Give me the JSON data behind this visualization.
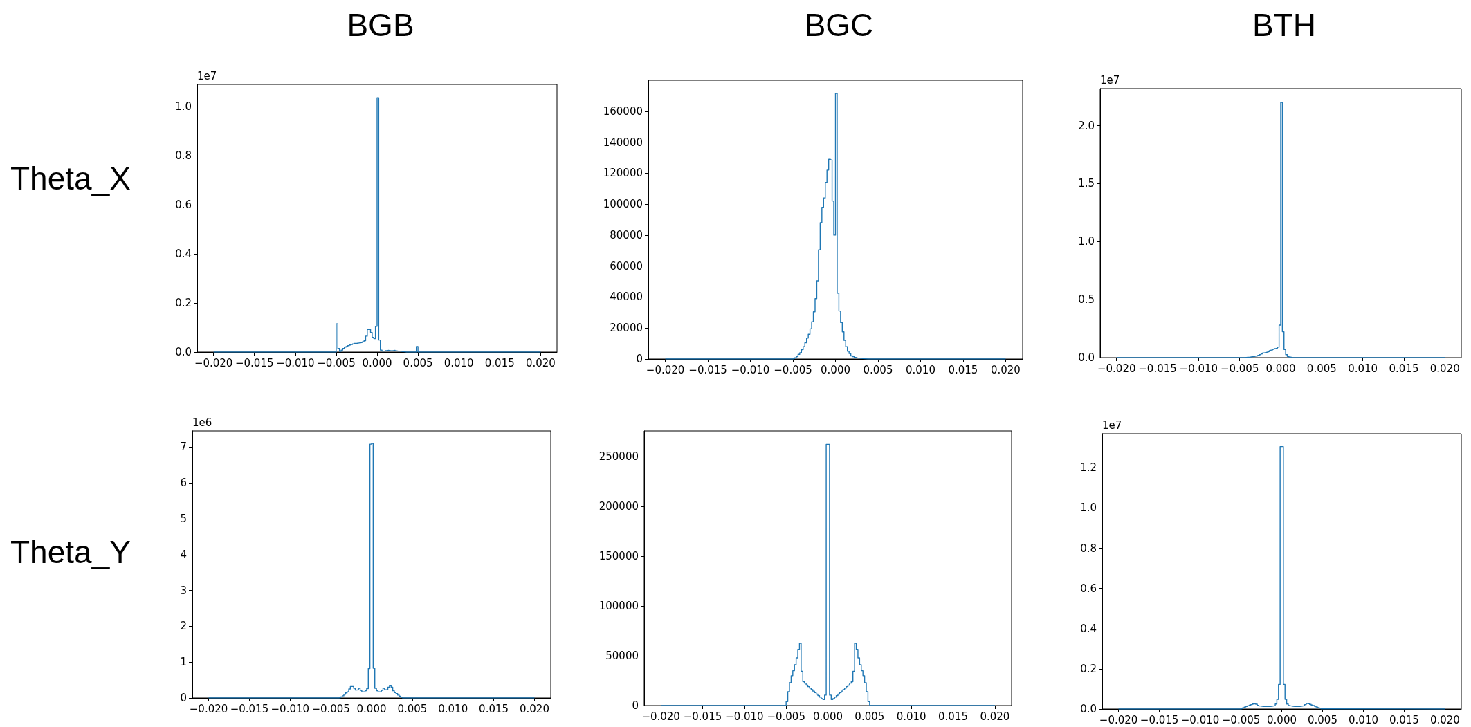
{
  "chart_data": [
    {
      "type": "histogram",
      "title": "BGB",
      "ylabel": "Theta_X",
      "annotations": [
        "1e7"
      ],
      "color": "#1f77b4",
      "bins": [
        -0.02,
        -0.005,
        -0.0048,
        -0.0046,
        -0.0044,
        -0.0042,
        -0.004,
        -0.0038,
        -0.0036,
        -0.0034,
        -0.0032,
        -0.003,
        -0.0028,
        -0.0026,
        -0.0024,
        -0.0022,
        -0.002,
        -0.0018,
        -0.0016,
        -0.0014,
        -0.0012,
        -0.001,
        -0.0008,
        -0.0006,
        -0.0004,
        -0.0002,
        0,
        0.0002,
        0.0004,
        0.0006,
        0.0008,
        0.001,
        0.0012,
        0.0014,
        0.0016,
        0.0018,
        0.002,
        0.0022,
        0.0024,
        0.0026,
        0.0028,
        0.003,
        0.0032,
        0.0034,
        0.0036,
        0.0038,
        0.004,
        0.0042,
        0.0044,
        0.0046,
        0.0048,
        0.005,
        0.02
      ],
      "values": [
        0,
        0.115,
        0.015,
        0.003,
        0.008,
        0.015,
        0.02,
        0.023,
        0.026,
        0.029,
        0.031,
        0.033,
        0.035,
        0.036,
        0.037,
        0.038,
        0.039,
        0.042,
        0.046,
        0.065,
        0.092,
        0.093,
        0.08,
        0.06,
        0.055,
        0.105,
        1.036,
        0.049,
        0.008,
        0.004,
        0.004,
        0.006,
        0.007,
        0.006,
        0.005,
        0.006,
        0.007,
        0.005,
        0.004,
        0.004,
        0.003,
        0.002,
        0.001,
        0,
        0,
        0,
        0,
        0,
        0,
        0,
        0.023,
        0
      ],
      "xlim": [
        -0.022,
        0.022
      ],
      "xticks": [
        {
          "value": -0.02,
          "label": "−0.020"
        },
        {
          "value": -0.015,
          "label": "−0.015"
        },
        {
          "value": -0.01,
          "label": "−0.010"
        },
        {
          "value": -0.005,
          "label": "−0.005"
        },
        {
          "value": 0,
          "label": "0.000"
        },
        {
          "value": 0.005,
          "label": "0.005"
        },
        {
          "value": 0.01,
          "label": "0.010"
        },
        {
          "value": 0.015,
          "label": "0.015"
        },
        {
          "value": 0.02,
          "label": "0.020"
        }
      ],
      "ylim": [
        0,
        1.09
      ],
      "yticks": [
        {
          "value": 0,
          "label": "0.0"
        },
        0.2,
        0.4,
        0.6,
        0.8,
        {
          "value": 1,
          "label": "1.0"
        }
      ]
    },
    {
      "type": "histogram",
      "title": "BGC",
      "color": "#1f77b4",
      "bins": [
        -0.02,
        -0.005,
        -0.0048,
        -0.0046,
        -0.0044,
        -0.0042,
        -0.004,
        -0.0038,
        -0.0036,
        -0.0034,
        -0.0032,
        -0.003,
        -0.0028,
        -0.0026,
        -0.0024,
        -0.0022,
        -0.002,
        -0.0018,
        -0.0016,
        -0.0014,
        -0.0012,
        -0.001,
        -0.0008,
        -0.0006,
        -0.0004,
        -0.0002,
        0,
        0.0002,
        0.0004,
        0.0006,
        0.0008,
        0.001,
        0.0012,
        0.0014,
        0.0016,
        0.0018,
        0.002,
        0.0022,
        0.0024,
        0.0026,
        0.0028,
        0.003,
        0.0032,
        0.0034,
        0.0036,
        0.0038,
        0.004,
        0.0042,
        0.0044,
        0.0046,
        0.0048,
        0.005,
        0.02
      ],
      "values": [
        0,
        300,
        800,
        1500,
        3000,
        4000,
        6000,
        8000,
        10500,
        13500,
        16000,
        19500,
        24000,
        30500,
        39000,
        50500,
        70500,
        88000,
        98000,
        104000,
        114000,
        122000,
        129000,
        128500,
        102000,
        80000,
        171500,
        42500,
        31000,
        23500,
        17500,
        12000,
        8000,
        5000,
        3500,
        2000,
        1500,
        1000,
        700,
        500,
        400,
        300,
        200,
        100,
        0,
        0,
        0,
        0,
        0,
        0,
        0,
        0
      ],
      "xlim": [
        -0.022,
        0.022
      ],
      "xticks": [
        {
          "value": -0.02,
          "label": "−0.020"
        },
        {
          "value": -0.015,
          "label": "−0.015"
        },
        {
          "value": -0.01,
          "label": "−0.010"
        },
        {
          "value": -0.005,
          "label": "−0.005"
        },
        {
          "value": 0,
          "label": "0.000"
        },
        {
          "value": 0.005,
          "label": "0.005"
        },
        {
          "value": 0.01,
          "label": "0.010"
        },
        {
          "value": 0.015,
          "label": "0.015"
        },
        {
          "value": 0.02,
          "label": "0.020"
        }
      ],
      "ylim": [
        0,
        180000
      ],
      "yticks": [
        0,
        20000,
        40000,
        60000,
        80000,
        100000,
        120000,
        140000,
        160000
      ]
    },
    {
      "type": "histogram",
      "title": "BTH",
      "annotations": [
        "1e7"
      ],
      "color": "#1f77b4",
      "bins": [
        -0.02,
        -0.005,
        -0.0048,
        -0.0046,
        -0.0044,
        -0.0042,
        -0.004,
        -0.0038,
        -0.0036,
        -0.0034,
        -0.0032,
        -0.003,
        -0.0028,
        -0.0026,
        -0.0024,
        -0.0022,
        -0.002,
        -0.0018,
        -0.0016,
        -0.0014,
        -0.0012,
        -0.001,
        -0.0008,
        -0.0006,
        -0.0004,
        -0.0002,
        0,
        0.0002,
        0.0004,
        0.0006,
        0.0008,
        0.001,
        0.0012,
        0.0014,
        0.0016,
        0.0018,
        0.002,
        0.0022,
        0.0024,
        0.0026,
        0.0028,
        0.003,
        0.0032,
        0.0034,
        0.0036,
        0.0038,
        0.004,
        0.0042,
        0.0044,
        0.0046,
        0.0048,
        0.005,
        0.02
      ],
      "values": [
        0,
        0,
        0.001,
        0.001,
        0.002,
        0.003,
        0.004,
        0.006,
        0.008,
        0.01,
        0.013,
        0.015,
        0.02,
        0.025,
        0.032,
        0.04,
        0.044,
        0.048,
        0.052,
        0.06,
        0.065,
        0.072,
        0.078,
        0.082,
        0.09,
        0.28,
        2.2,
        0.223,
        0.07,
        0.025,
        0.01,
        0.005,
        0.002,
        0.001,
        0,
        0,
        0,
        0,
        0,
        0,
        0,
        0,
        0,
        0,
        0,
        0,
        0,
        0,
        0,
        0,
        0,
        0
      ],
      "xlim": [
        -0.022,
        0.022
      ],
      "xticks": [
        {
          "value": -0.02,
          "label": "−0.020"
        },
        {
          "value": -0.015,
          "label": "−0.015"
        },
        {
          "value": -0.01,
          "label": "−0.010"
        },
        {
          "value": -0.005,
          "label": "−0.005"
        },
        {
          "value": 0,
          "label": "0.000"
        },
        {
          "value": 0.005,
          "label": "0.005"
        },
        {
          "value": 0.01,
          "label": "0.010"
        },
        {
          "value": 0.015,
          "label": "0.015"
        },
        {
          "value": 0.02,
          "label": "0.020"
        }
      ],
      "ylim": [
        0,
        2.32
      ],
      "yticks": [
        {
          "value": 0,
          "label": "0.0"
        },
        0.5,
        {
          "value": 1,
          "label": "1.0"
        },
        1.5,
        {
          "value": 2,
          "label": "2.0"
        }
      ]
    },
    {
      "type": "histogram",
      "ylabel": "Theta_Y",
      "annotations": [
        "1e6"
      ],
      "color": "#1f77b4",
      "bins": [
        -0.02,
        -0.005,
        -0.0048,
        -0.0046,
        -0.0044,
        -0.0042,
        -0.004,
        -0.0038,
        -0.0036,
        -0.0034,
        -0.0032,
        -0.003,
        -0.0028,
        -0.0026,
        -0.0024,
        -0.0022,
        -0.002,
        -0.0018,
        -0.0016,
        -0.0014,
        -0.0012,
        -0.001,
        -0.0008,
        -0.0006,
        -0.0004,
        -0.0002,
        0,
        0.0002,
        0.0004,
        0.0006,
        0.0008,
        0.001,
        0.0012,
        0.0014,
        0.0016,
        0.0018,
        0.002,
        0.0022,
        0.0024,
        0.0026,
        0.0028,
        0.003,
        0.0032,
        0.0034,
        0.0036,
        0.0038,
        0.004,
        0.0042,
        0.0044,
        0.0046,
        0.0048,
        0.005,
        0.02
      ],
      "values": [
        0,
        0,
        0,
        0,
        0,
        0,
        0.01,
        0.03,
        0.06,
        0.1,
        0.14,
        0.17,
        0.25,
        0.32,
        0.32,
        0.27,
        0.22,
        0.23,
        0.27,
        0.21,
        0.17,
        0.17,
        0.2,
        0.26,
        0.82,
        7.08,
        7.1,
        0.83,
        0.27,
        0.2,
        0.17,
        0.17,
        0.21,
        0.27,
        0.23,
        0.23,
        0.3,
        0.34,
        0.3,
        0.2,
        0.15,
        0.12,
        0.08,
        0.05,
        0.02,
        0,
        0,
        0,
        0,
        0,
        0,
        0
      ],
      "xlim": [
        -0.022,
        0.022
      ],
      "xticks": [
        {
          "value": -0.02,
          "label": "−0.020"
        },
        {
          "value": -0.015,
          "label": "−0.015"
        },
        {
          "value": -0.01,
          "label": "−0.010"
        },
        {
          "value": -0.005,
          "label": "−0.005"
        },
        {
          "value": 0,
          "label": "0.000"
        },
        {
          "value": 0.005,
          "label": "0.005"
        },
        {
          "value": 0.01,
          "label": "0.010"
        },
        {
          "value": 0.015,
          "label": "0.015"
        },
        {
          "value": 0.02,
          "label": "0.020"
        }
      ],
      "ylim": [
        0,
        7.45
      ],
      "yticks": [
        0,
        1,
        2,
        3,
        4,
        5,
        6,
        7
      ]
    },
    {
      "type": "histogram",
      "color": "#1f77b4",
      "bins": [
        -0.02,
        -0.005,
        -0.0048,
        -0.0046,
        -0.0044,
        -0.0042,
        -0.004,
        -0.0038,
        -0.0036,
        -0.0034,
        -0.0032,
        -0.003,
        -0.0028,
        -0.0026,
        -0.0024,
        -0.0022,
        -0.002,
        -0.0018,
        -0.0016,
        -0.0014,
        -0.0012,
        -0.001,
        -0.0008,
        -0.0006,
        -0.0004,
        -0.0002,
        0,
        0.0002,
        0.0004,
        0.0006,
        0.0008,
        0.001,
        0.0012,
        0.0014,
        0.0016,
        0.0018,
        0.002,
        0.0022,
        0.0024,
        0.0026,
        0.0028,
        0.003,
        0.0032,
        0.0034,
        0.0036,
        0.0038,
        0.004,
        0.0042,
        0.0044,
        0.0046,
        0.0048,
        0.005,
        0.02
      ],
      "values": [
        0,
        4000,
        14000,
        23000,
        30000,
        35000,
        41000,
        48000,
        56500,
        62500,
        34500,
        24000,
        22500,
        20500,
        19000,
        17500,
        16000,
        14500,
        13000,
        11500,
        10000,
        8500,
        7000,
        6000,
        10500,
        262500,
        262500,
        10500,
        6000,
        7000,
        8500,
        10000,
        11500,
        13000,
        14500,
        16000,
        17500,
        19000,
        20500,
        22500,
        24000,
        34500,
        62500,
        56500,
        48000,
        41000,
        35000,
        30000,
        23000,
        14000,
        4000,
        0
      ],
      "xlim": [
        -0.022,
        0.022
      ],
      "xticks": [
        {
          "value": -0.02,
          "label": "−0.020"
        },
        {
          "value": -0.015,
          "label": "−0.015"
        },
        {
          "value": -0.01,
          "label": "−0.010"
        },
        {
          "value": -0.005,
          "label": "−0.005"
        },
        {
          "value": 0,
          "label": "0.000"
        },
        {
          "value": 0.005,
          "label": "0.005"
        },
        {
          "value": 0.01,
          "label": "0.010"
        },
        {
          "value": 0.015,
          "label": "0.015"
        },
        {
          "value": 0.02,
          "label": "0.020"
        }
      ],
      "ylim": [
        0,
        276000
      ],
      "yticks": [
        0,
        50000,
        100000,
        150000,
        200000,
        250000
      ]
    },
    {
      "type": "histogram",
      "annotations": [
        "1e7"
      ],
      "color": "#1f77b4",
      "bins": [
        -0.02,
        -0.005,
        -0.0048,
        -0.0046,
        -0.0044,
        -0.0042,
        -0.004,
        -0.0038,
        -0.0036,
        -0.0034,
        -0.0032,
        -0.003,
        -0.0028,
        -0.0026,
        -0.0024,
        -0.0022,
        -0.002,
        -0.0018,
        -0.0016,
        -0.0014,
        -0.0012,
        -0.001,
        -0.0008,
        -0.0006,
        -0.0004,
        -0.0002,
        0,
        0.0002,
        0.0004,
        0.0006,
        0.0008,
        0.001,
        0.0012,
        0.0014,
        0.0016,
        0.0018,
        0.002,
        0.0022,
        0.0024,
        0.0026,
        0.0028,
        0.003,
        0.0032,
        0.0034,
        0.0036,
        0.0038,
        0.004,
        0.0042,
        0.0044,
        0.0046,
        0.0048,
        0.005,
        0.02
      ],
      "values": [
        0,
        0.002,
        0.006,
        0.01,
        0.013,
        0.016,
        0.019,
        0.022,
        0.025,
        0.027,
        0.024,
        0.018,
        0.015,
        0.014,
        0.013,
        0.013,
        0.013,
        0.013,
        0.013,
        0.014,
        0.015,
        0.017,
        0.025,
        0.048,
        0.122,
        1.306,
        1.306,
        0.122,
        0.048,
        0.025,
        0.017,
        0.015,
        0.014,
        0.013,
        0.013,
        0.013,
        0.013,
        0.014,
        0.015,
        0.017,
        0.022,
        0.027,
        0.026,
        0.023,
        0.02,
        0.017,
        0.014,
        0.01,
        0.007,
        0.004,
        0.001,
        0
      ],
      "xlim": [
        -0.022,
        0.022
      ],
      "xticks": [
        {
          "value": -0.02,
          "label": "−0.020"
        },
        {
          "value": -0.015,
          "label": "−0.015"
        },
        {
          "value": -0.01,
          "label": "−0.010"
        },
        {
          "value": -0.005,
          "label": "−0.005"
        },
        {
          "value": 0,
          "label": "0.000"
        },
        {
          "value": 0.005,
          "label": "0.005"
        },
        {
          "value": 0.01,
          "label": "0.010"
        },
        {
          "value": 0.015,
          "label": "0.015"
        },
        {
          "value": 0.02,
          "label": "0.020"
        }
      ],
      "ylim": [
        0,
        1.37
      ],
      "yticks": [
        {
          "value": 0,
          "label": "0.0"
        },
        0.2,
        0.4,
        0.6,
        0.8,
        {
          "value": 1,
          "label": "1.0"
        },
        1.2
      ]
    }
  ]
}
